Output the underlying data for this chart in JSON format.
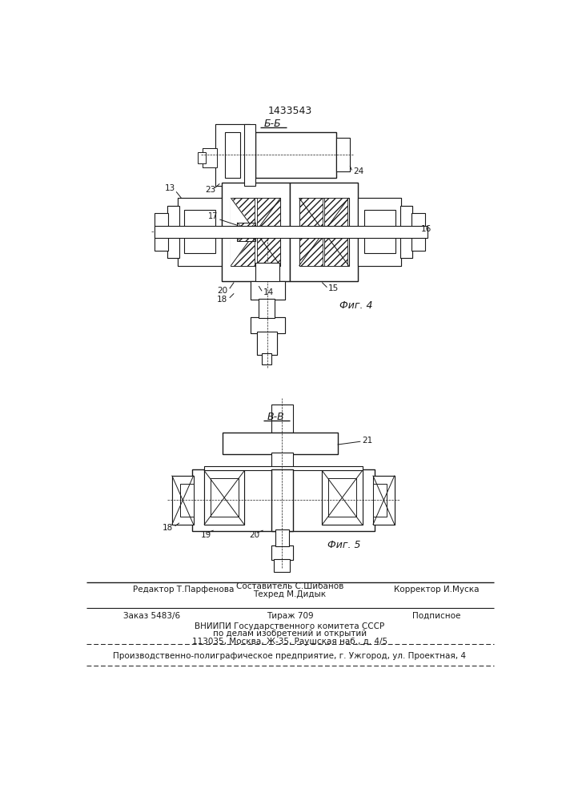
{
  "patent_number": "1433543",
  "fig4_label": "Б-Б",
  "fig5_label": "В-В",
  "fig4_caption": "Фиг. 4",
  "fig5_caption": "Фиг. 5",
  "footer_line1_left": "Редактор Т.Парфенова",
  "footer_line1_center1": "Составитель С.Шибанов",
  "footer_line1_center2": "Техред М.Дидык",
  "footer_line1_right": "Корректор И.Муска",
  "footer_line2_left": "Заказ 5483/6",
  "footer_line2_center": "Тираж 709",
  "footer_line2_right": "Подписное",
  "footer_line3": "ВНИИПИ Государственного комитета СССР",
  "footer_line4": "по делам изобретений и открытий",
  "footer_line5": "113035, Москва, Ж-35, Раушская наб., д. 4/5",
  "footer_line6": "Производственно-полиграфическое предприятие, г. Ужгород, ул. Проектная, 4",
  "bg_color": "#ffffff",
  "line_color": "#1a1a1a"
}
